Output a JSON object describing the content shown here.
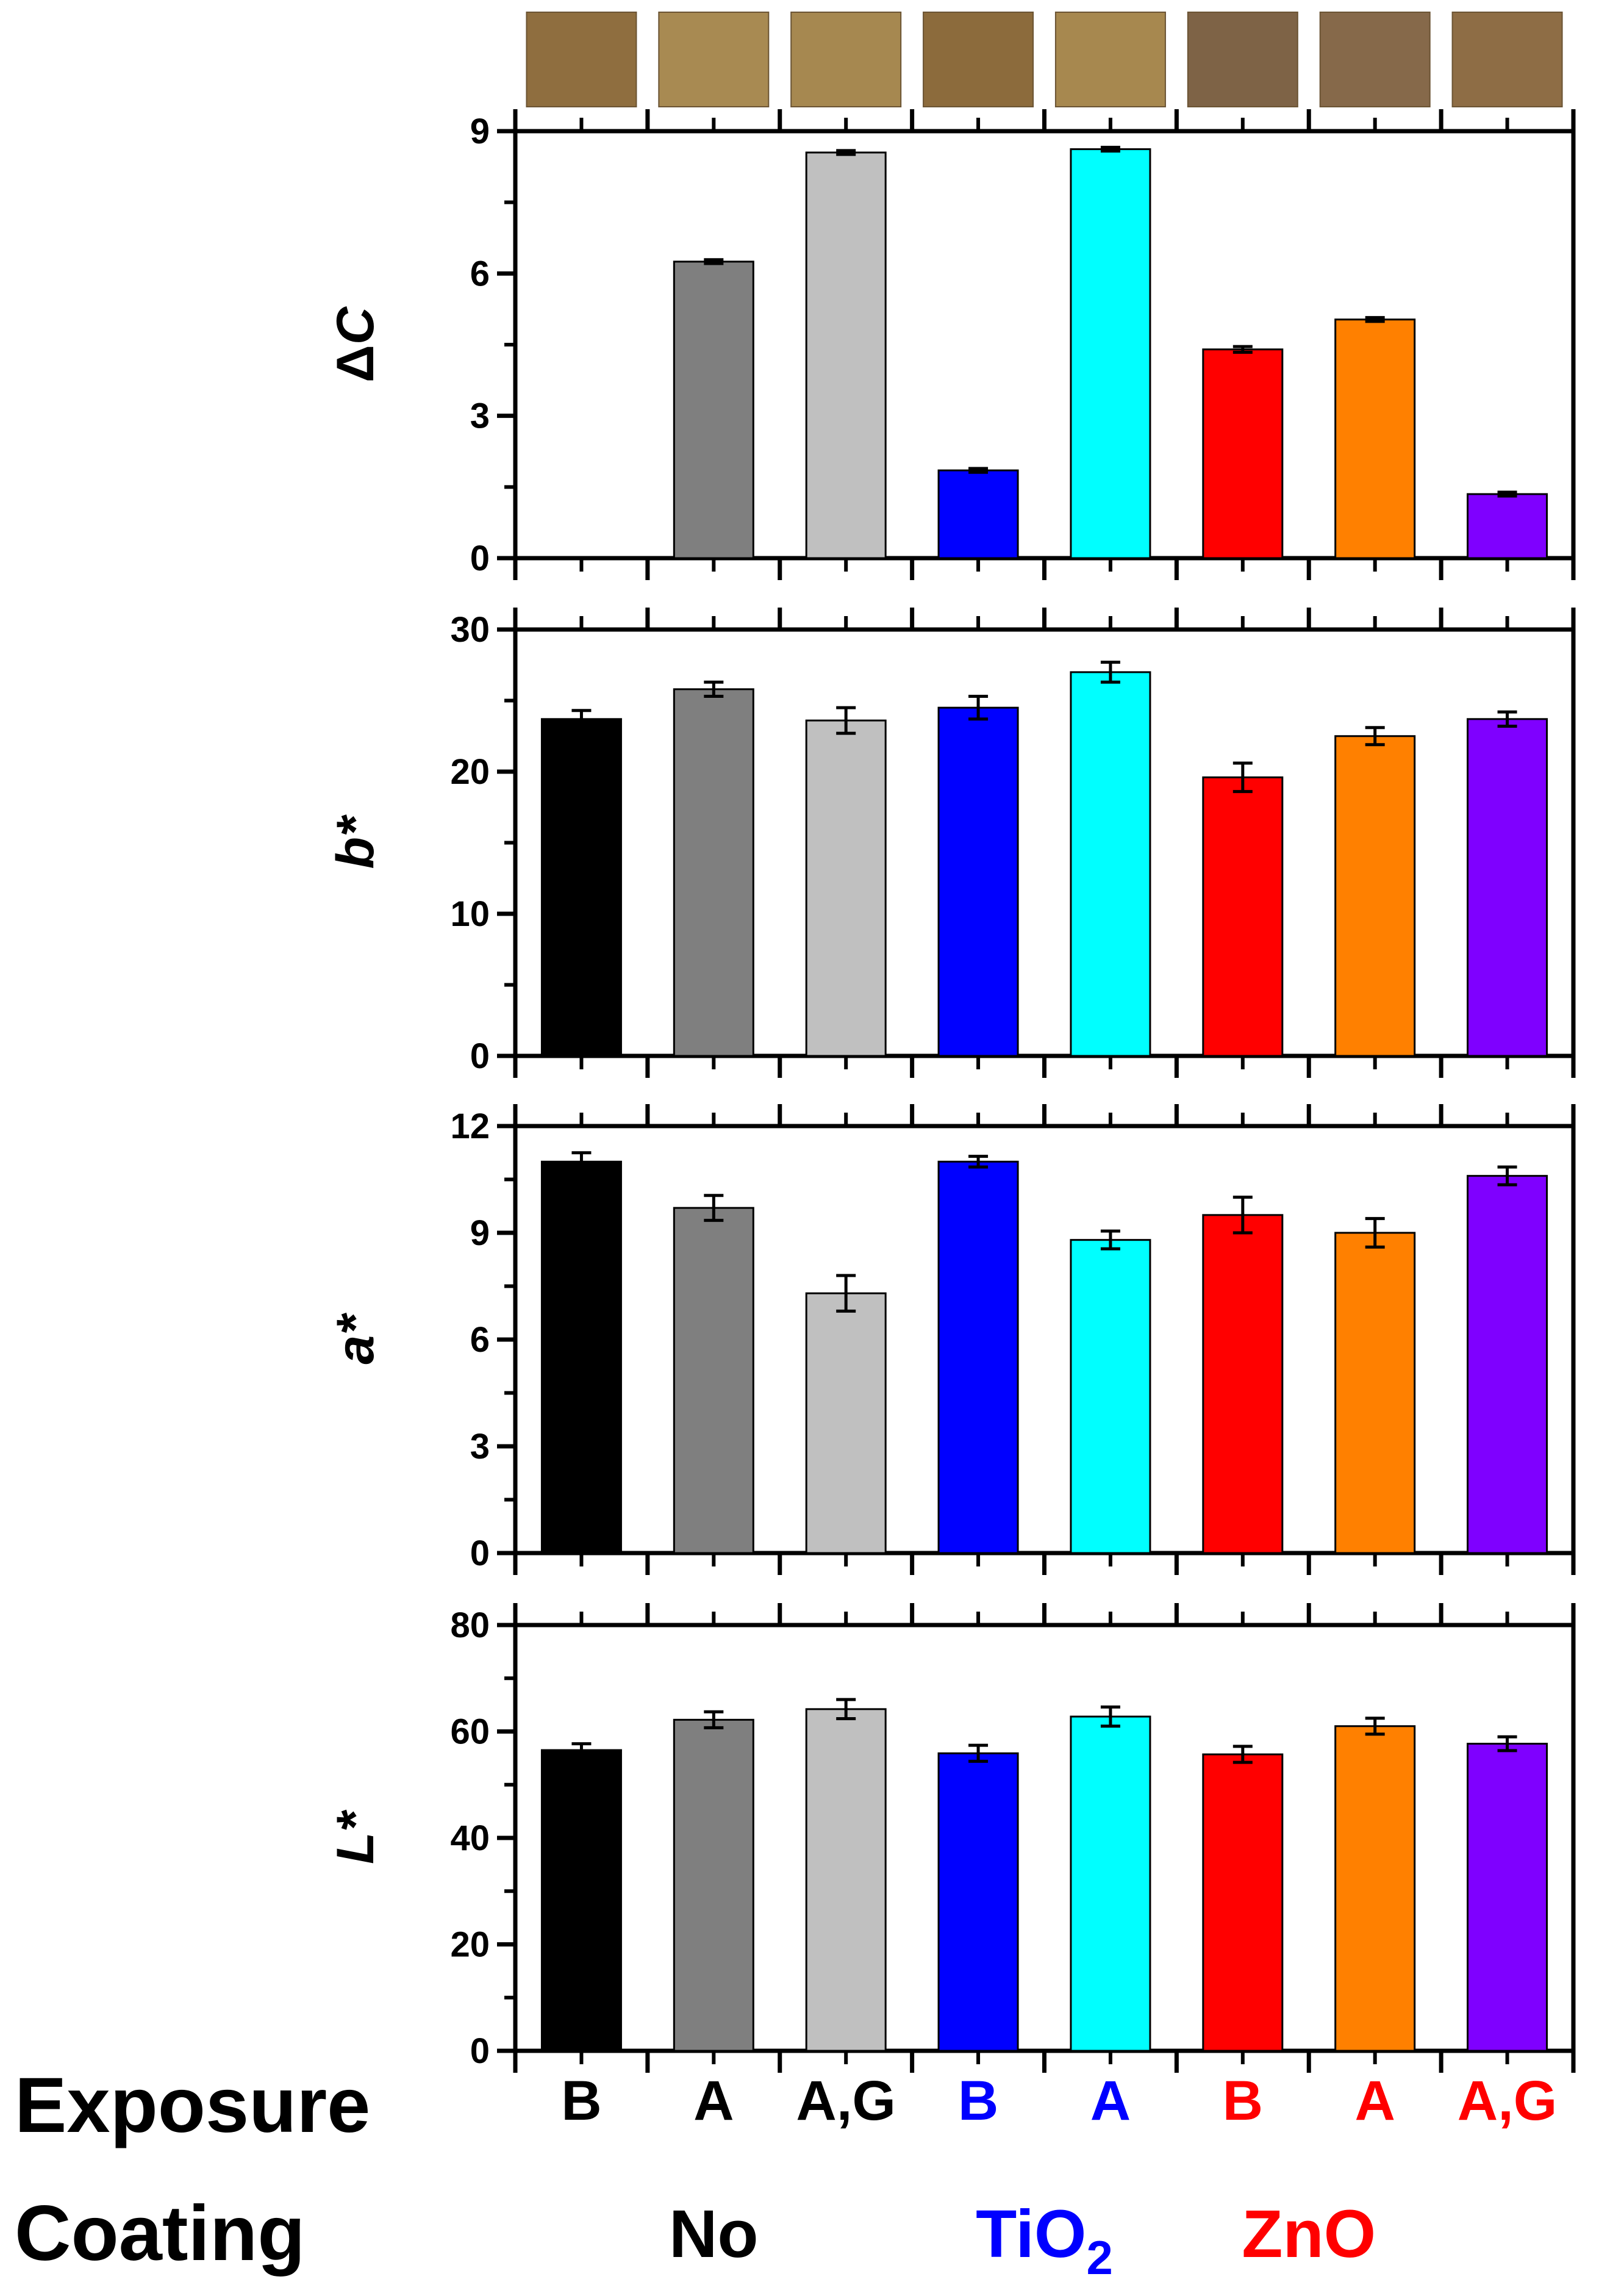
{
  "chart_data": {
    "type": "bar",
    "categories": [
      "B",
      "A",
      "A,G",
      "B",
      "A",
      "B",
      "A",
      "A,G"
    ],
    "bar_colors": [
      "#000000",
      "#7f7f7f",
      "#c0c0c0",
      "#0000ff",
      "#00ffff",
      "#ff0000",
      "#ff8000",
      "#7f00ff"
    ],
    "swatch_colors": [
      "#8f6e3f",
      "#a88a52",
      "#a68850",
      "#8c6b3c",
      "#a7884f",
      "#7e6346",
      "#86694a",
      "#8e6d45"
    ],
    "panels": [
      {
        "ylabel": "ΔC",
        "ylabel_symbol": "Δ",
        "ylabel_var": "C",
        "ylim": [
          0,
          9
        ],
        "yticks": [
          "0",
          "3",
          "6",
          "9"
        ],
        "values": [
          0,
          6.25,
          8.55,
          1.85,
          8.62,
          4.4,
          5.03,
          1.35
        ],
        "errors": [
          0,
          0.04,
          0.04,
          0.04,
          0.04,
          0.06,
          0.04,
          0.04
        ]
      },
      {
        "ylabel": "b*",
        "ylim": [
          0,
          30
        ],
        "yticks": [
          "0",
          "10",
          "20",
          "30"
        ],
        "values": [
          23.7,
          25.8,
          23.6,
          24.5,
          27.0,
          19.6,
          22.5,
          23.7
        ],
        "errors": [
          0.6,
          0.5,
          0.9,
          0.8,
          0.7,
          1.0,
          0.6,
          0.5
        ]
      },
      {
        "ylabel": "a*",
        "ylim": [
          0,
          12
        ],
        "yticks": [
          "0",
          "3",
          "6",
          "9",
          "12"
        ],
        "values": [
          11.0,
          9.7,
          7.3,
          11.0,
          8.8,
          9.5,
          9.0,
          10.6
        ],
        "errors": [
          0.25,
          0.35,
          0.5,
          0.15,
          0.25,
          0.5,
          0.4,
          0.25
        ]
      },
      {
        "ylabel": "L*",
        "ylim": [
          0,
          80
        ],
        "yticks": [
          "0",
          "20",
          "40",
          "60",
          "80"
        ],
        "values": [
          56.5,
          62.2,
          64.2,
          55.9,
          62.8,
          55.7,
          61.0,
          57.7
        ],
        "errors": [
          1.2,
          1.5,
          1.8,
          1.5,
          1.8,
          1.5,
          1.5,
          1.3
        ]
      }
    ],
    "row_labels": {
      "exposure": "Exposure",
      "coating": "Coating"
    },
    "exposure_colors": [
      "#000000",
      "#000000",
      "#000000",
      "#0000ff",
      "#0000ff",
      "#ff0000",
      "#ff0000",
      "#ff0000"
    ],
    "coatings": [
      {
        "label": "No",
        "sub": "",
        "color": "#000000"
      },
      {
        "label": "TiO",
        "sub": "2",
        "color": "#0000ff"
      },
      {
        "label": "ZnO",
        "sub": "",
        "color": "#ff0000"
      }
    ]
  }
}
